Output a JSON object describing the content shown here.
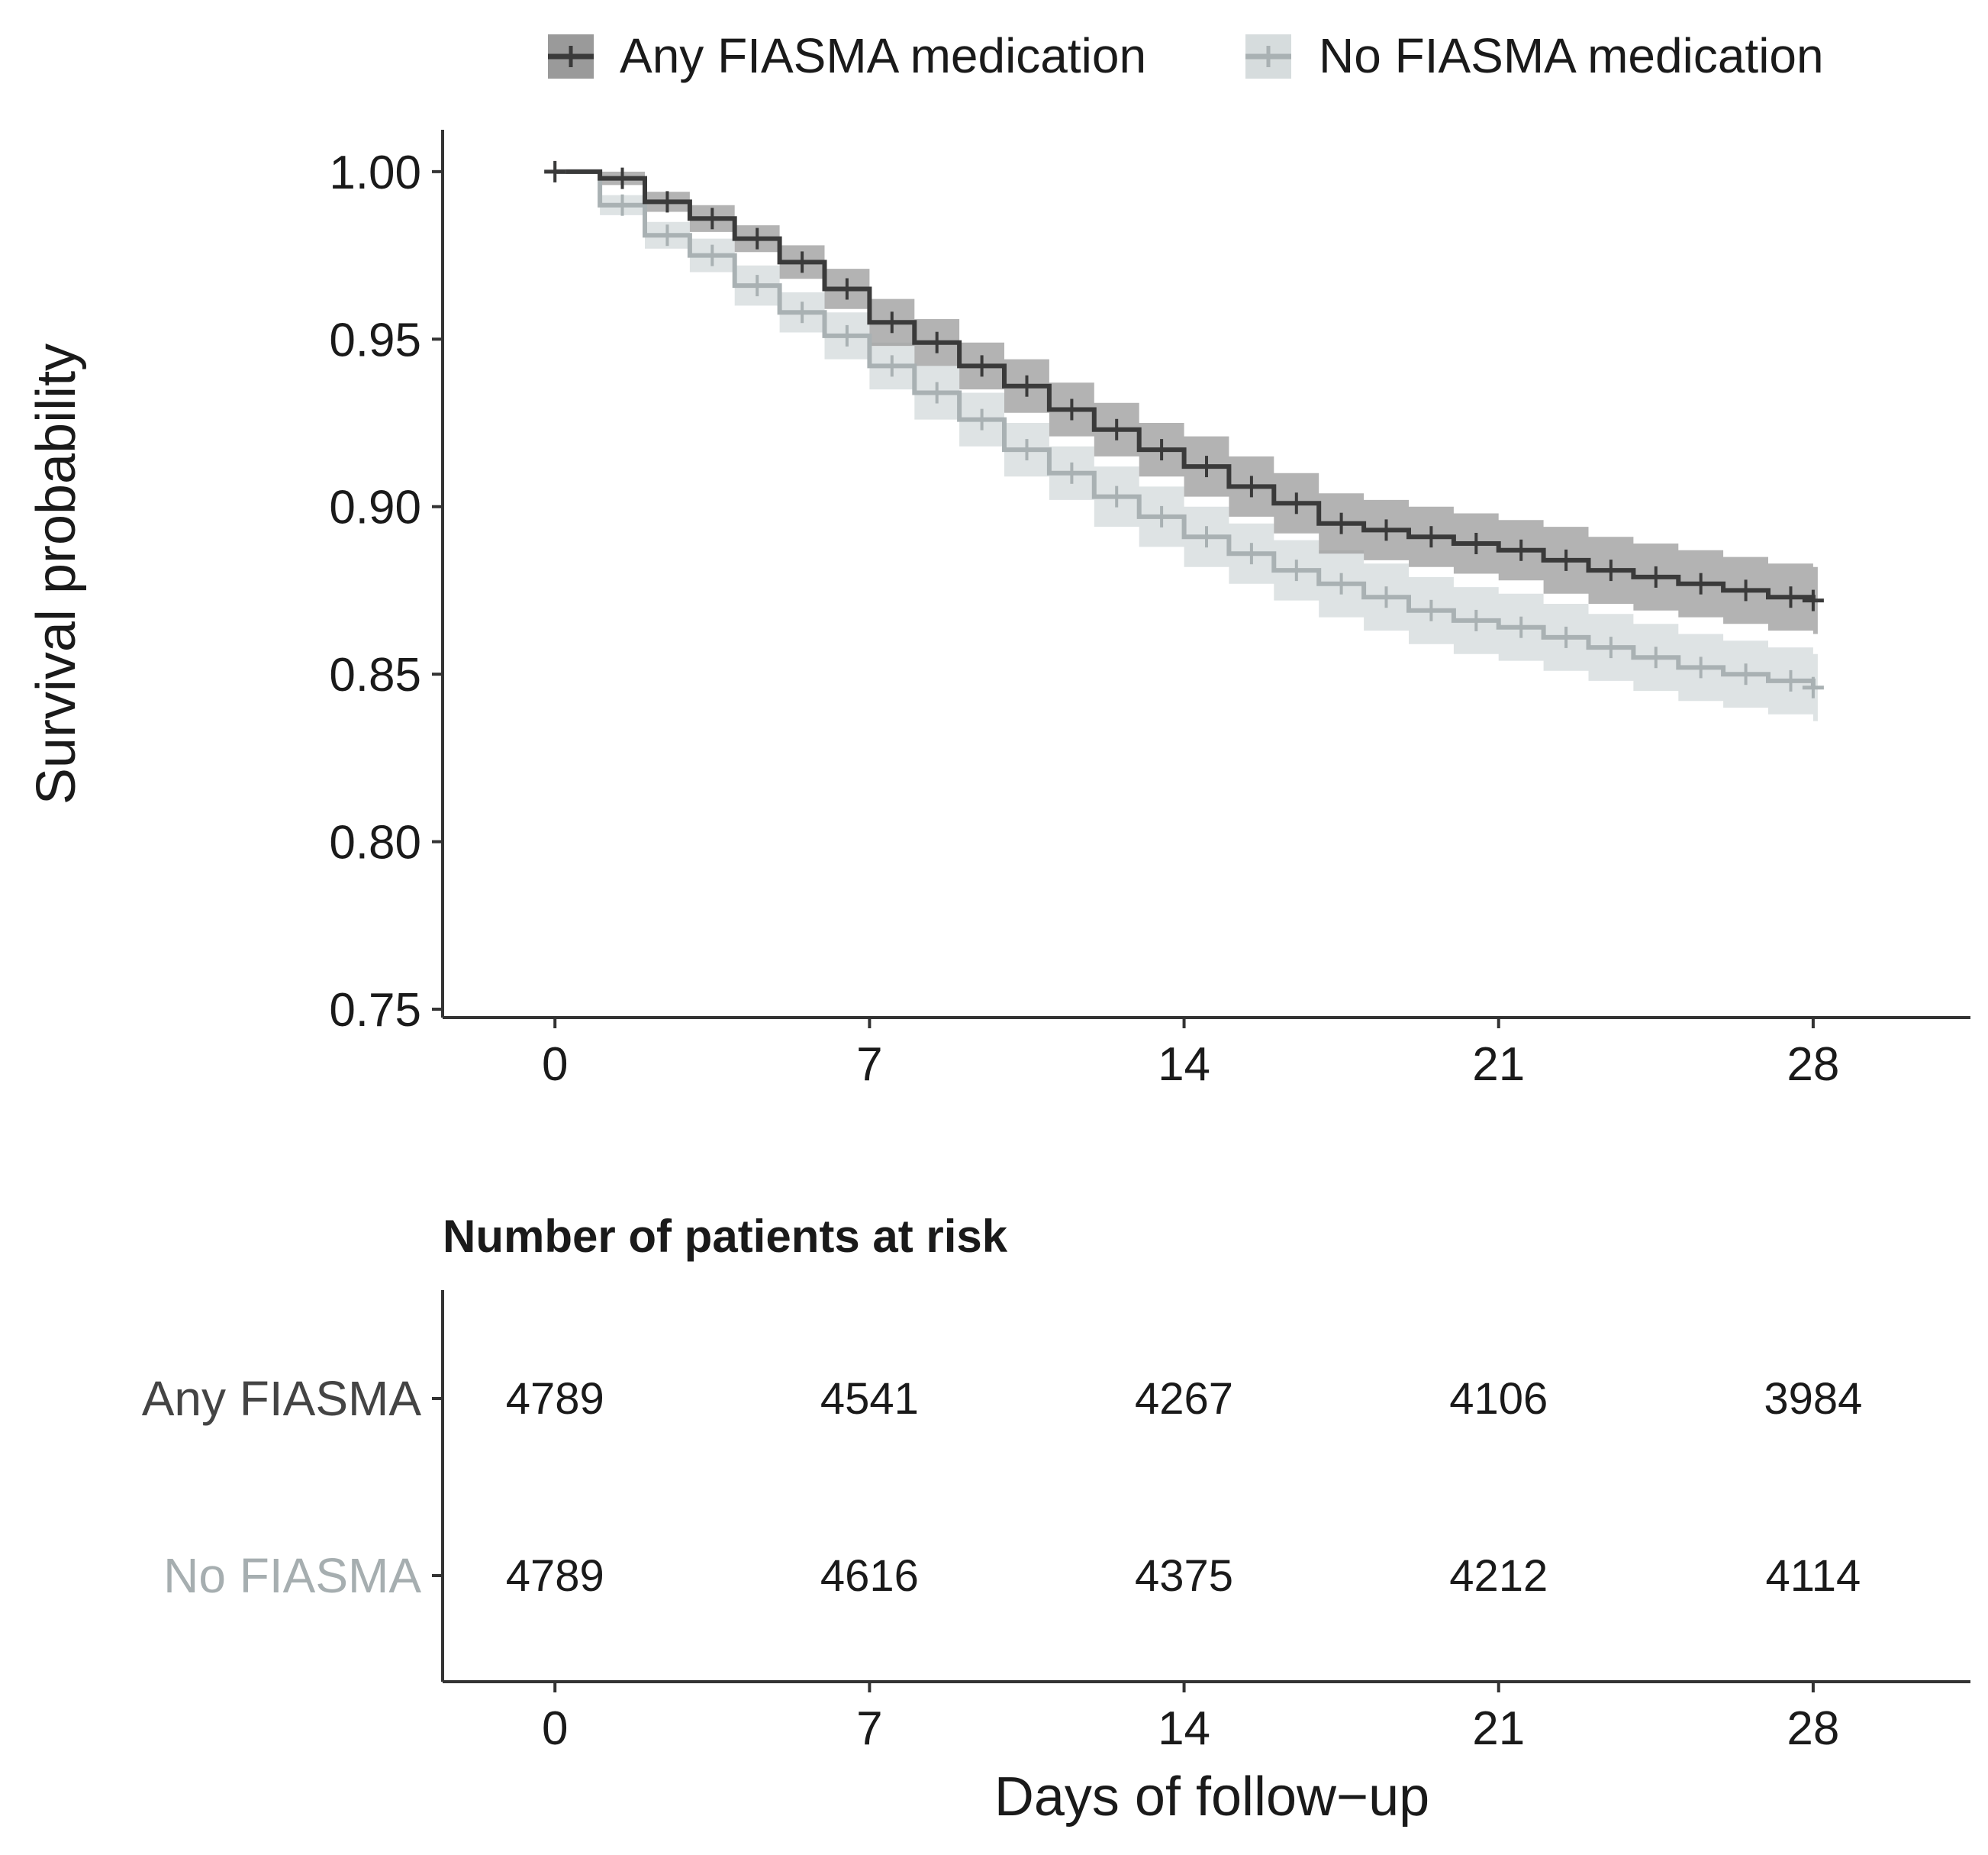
{
  "colors": {
    "any_line": "#3a3a3a",
    "any_band": "#9a9a9a",
    "no_line": "#a9b1b3",
    "no_band": "#d6dcdd",
    "axis": "#333333",
    "text": "#1a1a1a",
    "any_label": "#444444",
    "no_label": "#a6aeb0"
  },
  "legend": {
    "entries": [
      "Any FIASMA medication",
      "No FIASMA medication"
    ]
  },
  "risk_table": {
    "title": "Number of patients at risk",
    "row_labels": [
      "Any FIASMA",
      "No FIASMA"
    ],
    "times": [
      0,
      7,
      14,
      21,
      28
    ],
    "rows": [
      [
        4789,
        4541,
        4267,
        4106,
        3984
      ],
      [
        4789,
        4616,
        4375,
        4212,
        4114
      ]
    ],
    "xlabel": "Days of follow−up",
    "xticks": [
      "0",
      "7",
      "14",
      "21",
      "28"
    ]
  },
  "chart_data": {
    "type": "line",
    "subtype": "kaplan-meier step",
    "title": "",
    "xlabel": "Days of follow−up",
    "ylabel": "Survival probability",
    "xlim": [
      -2.5,
      31.5
    ],
    "ylim": [
      0.7475,
      1.0125
    ],
    "xticks": [
      0,
      7,
      14,
      21,
      28
    ],
    "xtick_labels": [
      "0",
      "7",
      "14",
      "21",
      "28"
    ],
    "yticks": [
      0.75,
      0.8,
      0.85,
      0.9,
      0.95,
      1.0
    ],
    "ytick_labels": [
      "0.75",
      "0.80",
      "0.85",
      "0.90",
      "0.95",
      "1.00"
    ],
    "legend_position": "top",
    "series": [
      {
        "name": "Any FIASMA medication",
        "x": [
          0,
          1,
          2,
          3,
          4,
          5,
          6,
          7,
          8,
          9,
          10,
          11,
          12,
          13,
          14,
          15,
          16,
          17,
          18,
          19,
          20,
          21,
          22,
          23,
          24,
          25,
          26,
          27,
          28
        ],
        "y": [
          1.0,
          0.998,
          0.991,
          0.986,
          0.98,
          0.973,
          0.965,
          0.955,
          0.949,
          0.942,
          0.936,
          0.929,
          0.923,
          0.917,
          0.912,
          0.906,
          0.901,
          0.895,
          0.893,
          0.891,
          0.889,
          0.887,
          0.884,
          0.881,
          0.879,
          0.877,
          0.875,
          0.873,
          0.872
        ],
        "ci_half_width": [
          0.0,
          0.002,
          0.003,
          0.004,
          0.004,
          0.005,
          0.006,
          0.007,
          0.007,
          0.007,
          0.008,
          0.008,
          0.008,
          0.008,
          0.009,
          0.009,
          0.009,
          0.009,
          0.009,
          0.009,
          0.009,
          0.009,
          0.01,
          0.01,
          0.01,
          0.01,
          0.01,
          0.01,
          0.01
        ]
      },
      {
        "name": "No FIASMA medication",
        "x": [
          0,
          1,
          2,
          3,
          4,
          5,
          6,
          7,
          8,
          9,
          10,
          11,
          12,
          13,
          14,
          15,
          16,
          17,
          18,
          19,
          20,
          21,
          22,
          23,
          24,
          25,
          26,
          27,
          28
        ],
        "y": [
          1.0,
          0.99,
          0.981,
          0.975,
          0.966,
          0.958,
          0.951,
          0.942,
          0.934,
          0.926,
          0.917,
          0.91,
          0.903,
          0.897,
          0.891,
          0.886,
          0.881,
          0.877,
          0.873,
          0.869,
          0.866,
          0.864,
          0.861,
          0.858,
          0.855,
          0.852,
          0.85,
          0.848,
          0.846
        ],
        "ci_half_width": [
          0.0,
          0.003,
          0.004,
          0.005,
          0.006,
          0.006,
          0.007,
          0.007,
          0.008,
          0.008,
          0.008,
          0.008,
          0.009,
          0.009,
          0.009,
          0.009,
          0.009,
          0.01,
          0.01,
          0.01,
          0.01,
          0.01,
          0.01,
          0.01,
          0.01,
          0.01,
          0.01,
          0.01,
          0.01
        ]
      }
    ]
  }
}
